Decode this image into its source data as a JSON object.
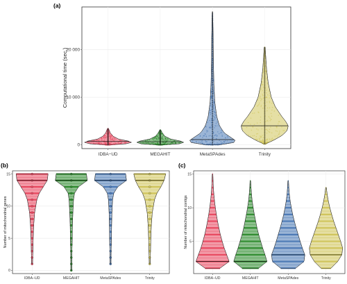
{
  "chart_data": [
    {
      "panel": "(a)",
      "type": "violin",
      "ylabel": "Computational time (sec.)",
      "categories": [
        "IDBA−UD",
        "MEGAHIT",
        "MetaSPAdes",
        "Trinity"
      ],
      "colors": [
        "#e8475f",
        "#2e8b2e",
        "#4a78b5",
        "#cfc45a"
      ],
      "ylim": [
        -800,
        29000
      ],
      "yticks": [
        0,
        10000,
        20000
      ],
      "ytick_labels": [
        "0",
        "10 000",
        "20 000"
      ],
      "grid": true,
      "series": [
        {
          "name": "IDBA−UD",
          "max": 3400,
          "median": 700,
          "profile": [
            [
              0,
              0.1
            ],
            [
              200,
              0.75
            ],
            [
              500,
              1.0
            ],
            [
              800,
              0.85
            ],
            [
              1200,
              0.45
            ],
            [
              1800,
              0.22
            ],
            [
              2500,
              0.1
            ],
            [
              3400,
              0.02
            ]
          ]
        },
        {
          "name": "MEGAHIT",
          "max": 3100,
          "median": 650,
          "profile": [
            [
              0,
              0.1
            ],
            [
              200,
              0.8
            ],
            [
              500,
              1.0
            ],
            [
              800,
              0.85
            ],
            [
              1200,
              0.45
            ],
            [
              1800,
              0.2
            ],
            [
              2500,
              0.09
            ],
            [
              3100,
              0.02
            ]
          ]
        },
        {
          "name": "MetaSPAdes",
          "max": 28000,
          "median": 1100,
          "profile": [
            [
              0,
              0.3
            ],
            [
              300,
              0.85
            ],
            [
              800,
              1.0
            ],
            [
              1500,
              0.8
            ],
            [
              2500,
              0.5
            ],
            [
              4000,
              0.3
            ],
            [
              6000,
              0.18
            ],
            [
              9000,
              0.1
            ],
            [
              13000,
              0.06
            ],
            [
              18000,
              0.04
            ],
            [
              23000,
              0.03
            ],
            [
              28000,
              0.01
            ]
          ]
        },
        {
          "name": "Trinity",
          "max": 20500,
          "median": 4000,
          "profile": [
            [
              200,
              0.05
            ],
            [
              1000,
              0.4
            ],
            [
              2000,
              0.75
            ],
            [
              3000,
              0.95
            ],
            [
              4000,
              1.0
            ],
            [
              5000,
              0.88
            ],
            [
              6000,
              0.72
            ],
            [
              8000,
              0.45
            ],
            [
              10000,
              0.28
            ],
            [
              13000,
              0.15
            ],
            [
              16000,
              0.08
            ],
            [
              20500,
              0.02
            ]
          ]
        }
      ]
    },
    {
      "panel": "(b)",
      "type": "violin",
      "ylabel": "Number of mitochondrial genes",
      "categories": [
        "IDBA−UD",
        "MEGAHIT",
        "MetaSPAdes",
        "Trinity"
      ],
      "colors": [
        "#e8475f",
        "#2e8b2e",
        "#4a78b5",
        "#cfc45a"
      ],
      "ylim": [
        -0.5,
        15.5
      ],
      "yticks": [
        0,
        5,
        10,
        15
      ],
      "ytick_labels": [
        "0",
        "5",
        "10",
        "15"
      ],
      "grid": true,
      "series": [
        {
          "name": "IDBA−UD",
          "min": 1,
          "max": 15,
          "median": 14,
          "profile": [
            [
              1,
              0.03
            ],
            [
              3,
              0.05
            ],
            [
              5,
              0.07
            ],
            [
              7,
              0.1
            ],
            [
              9,
              0.16
            ],
            [
              11,
              0.3
            ],
            [
              12,
              0.45
            ],
            [
              13,
              0.7
            ],
            [
              14,
              0.95
            ],
            [
              15,
              1.0
            ]
          ]
        },
        {
          "name": "MEGAHIT",
          "min": 0,
          "max": 15,
          "median": 14,
          "profile": [
            [
              0,
              0.03
            ],
            [
              3,
              0.04
            ],
            [
              5,
              0.06
            ],
            [
              7,
              0.07
            ],
            [
              9,
              0.1
            ],
            [
              11,
              0.14
            ],
            [
              12,
              0.2
            ],
            [
              13,
              0.45
            ],
            [
              14,
              1.0
            ],
            [
              15,
              0.95
            ]
          ]
        },
        {
          "name": "MetaSPAdes",
          "min": 1,
          "max": 15,
          "median": 14,
          "profile": [
            [
              1,
              0.03
            ],
            [
              3,
              0.04
            ],
            [
              5,
              0.06
            ],
            [
              7,
              0.07
            ],
            [
              9,
              0.09
            ],
            [
              11,
              0.13
            ],
            [
              12,
              0.2
            ],
            [
              13,
              0.45
            ],
            [
              14,
              1.0
            ],
            [
              15,
              0.95
            ]
          ]
        },
        {
          "name": "Trinity",
          "min": 1,
          "max": 15,
          "median": 14,
          "profile": [
            [
              1,
              0.03
            ],
            [
              3,
              0.05
            ],
            [
              5,
              0.07
            ],
            [
              7,
              0.1
            ],
            [
              9,
              0.16
            ],
            [
              11,
              0.3
            ],
            [
              12,
              0.45
            ],
            [
              13,
              0.7
            ],
            [
              14,
              0.9
            ],
            [
              15,
              1.0
            ]
          ]
        }
      ]
    },
    {
      "panel": "(c)",
      "type": "violin",
      "ylabel": "Number of mitochondrial contigs",
      "categories": [
        "IDBA−UD",
        "MEGAHIT",
        "MetaSPAdes",
        "Trinity"
      ],
      "colors": [
        "#e8475f",
        "#2e8b2e",
        "#4a78b5",
        "#cfc45a"
      ],
      "ylim": [
        0.2,
        15.5
      ],
      "yticks": [
        5,
        10,
        15
      ],
      "ytick_labels": [
        "5",
        "10",
        "15"
      ],
      "grid": true,
      "series": [
        {
          "name": "IDBA−UD",
          "min": 1,
          "max": 15,
          "median": 2,
          "profile": [
            [
              1,
              0.45
            ],
            [
              2,
              1.0
            ],
            [
              3,
              0.85
            ],
            [
              4,
              0.7
            ],
            [
              5,
              0.58
            ],
            [
              6,
              0.47
            ],
            [
              7,
              0.38
            ],
            [
              8,
              0.3
            ],
            [
              9,
              0.23
            ],
            [
              10,
              0.17
            ],
            [
              11,
              0.12
            ],
            [
              12,
              0.08
            ],
            [
              13,
              0.05
            ],
            [
              15,
              0.02
            ]
          ]
        },
        {
          "name": "MEGAHIT",
          "min": 1,
          "max": 14,
          "median": 2,
          "profile": [
            [
              1,
              0.5
            ],
            [
              2,
              1.0
            ],
            [
              3,
              0.88
            ],
            [
              4,
              0.74
            ],
            [
              5,
              0.62
            ],
            [
              6,
              0.5
            ],
            [
              7,
              0.4
            ],
            [
              8,
              0.32
            ],
            [
              9,
              0.24
            ],
            [
              10,
              0.17
            ],
            [
              11,
              0.11
            ],
            [
              12,
              0.07
            ],
            [
              13,
              0.04
            ],
            [
              14,
              0.02
            ]
          ]
        },
        {
          "name": "MetaSPAdes",
          "min": 1,
          "max": 14,
          "median": 3,
          "profile": [
            [
              1,
              0.45
            ],
            [
              2,
              0.95
            ],
            [
              3,
              1.0
            ],
            [
              4,
              0.85
            ],
            [
              5,
              0.72
            ],
            [
              6,
              0.6
            ],
            [
              7,
              0.48
            ],
            [
              8,
              0.37
            ],
            [
              9,
              0.27
            ],
            [
              10,
              0.19
            ],
            [
              11,
              0.12
            ],
            [
              12,
              0.07
            ],
            [
              13,
              0.04
            ],
            [
              14,
              0.02
            ]
          ]
        },
        {
          "name": "Trinity",
          "min": 1,
          "max": 13,
          "median": 3,
          "profile": [
            [
              1,
              0.3
            ],
            [
              2,
              0.7
            ],
            [
              3,
              0.95
            ],
            [
              4,
              1.0
            ],
            [
              5,
              0.88
            ],
            [
              6,
              0.74
            ],
            [
              7,
              0.6
            ],
            [
              8,
              0.46
            ],
            [
              9,
              0.34
            ],
            [
              10,
              0.23
            ],
            [
              11,
              0.14
            ],
            [
              12,
              0.07
            ],
            [
              13,
              0.02
            ]
          ]
        }
      ]
    }
  ]
}
